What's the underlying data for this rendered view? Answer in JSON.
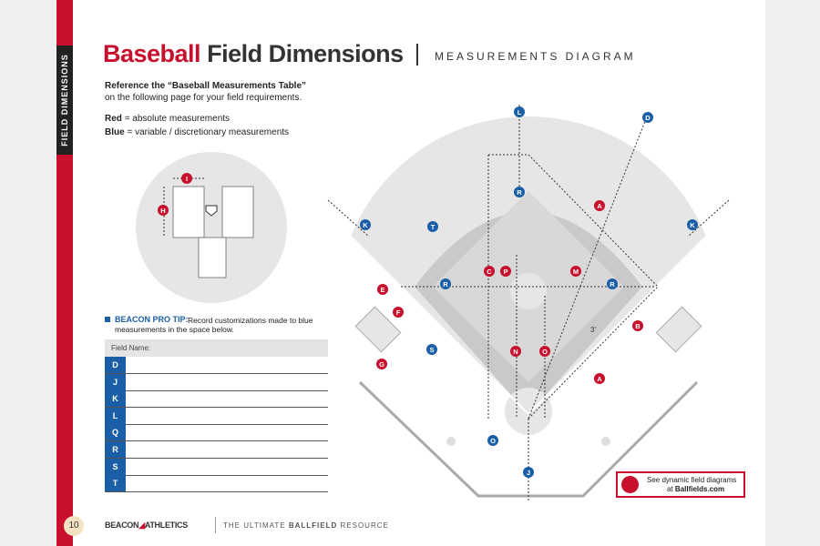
{
  "sidebar": {
    "label": "FIELD DIMENSIONS"
  },
  "header": {
    "title_red": "Baseball",
    "title_dark": "Field Dimensions",
    "subtitle": "MEASUREMENTS DIAGRAM"
  },
  "intro": {
    "line1": "Reference the “Baseball Measurements Table”",
    "line2": "on the following page for your field requirements."
  },
  "legend": [
    {
      "key": "Red",
      "text": "= absolute measurements",
      "color": "#c8102e"
    },
    {
      "key": "Blue",
      "text": "= variable / discretionary measurements",
      "color": "#1a5ea8"
    }
  ],
  "tip": {
    "heading": "BEACON PRO TIP:",
    "text": "Record customizations made to blue measurements in the space below."
  },
  "table": {
    "header": "Field Name:",
    "rows": [
      "D",
      "J",
      "K",
      "L",
      "Q",
      "R",
      "S",
      "T"
    ]
  },
  "diagram": {
    "labels": [
      {
        "letter": "L",
        "color": "#1a5ea8"
      },
      {
        "letter": "D",
        "color": "#1a5ea8"
      },
      {
        "letter": "R",
        "color": "#1a5ea8"
      },
      {
        "letter": "A",
        "color": "#c8102e"
      },
      {
        "letter": "K",
        "color": "#1a5ea8"
      },
      {
        "letter": "T",
        "color": "#1a5ea8"
      },
      {
        "letter": "K",
        "color": "#1a5ea8"
      },
      {
        "letter": "C",
        "color": "#c8102e"
      },
      {
        "letter": "P",
        "color": "#c8102e"
      },
      {
        "letter": "M",
        "color": "#c8102e"
      },
      {
        "letter": "E",
        "color": "#c8102e"
      },
      {
        "letter": "R",
        "color": "#1a5ea8"
      },
      {
        "letter": "R",
        "color": "#1a5ea8"
      },
      {
        "letter": "F",
        "color": "#c8102e"
      },
      {
        "letter": "S",
        "color": "#1a5ea8"
      },
      {
        "letter": "B",
        "color": "#c8102e"
      },
      {
        "letter": "N",
        "color": "#c8102e"
      },
      {
        "letter": "O",
        "color": "#c8102e"
      },
      {
        "letter": "A",
        "color": "#c8102e"
      },
      {
        "letter": "G",
        "color": "#c8102e"
      },
      {
        "letter": "O",
        "color": "#1a5ea8"
      },
      {
        "letter": "J",
        "color": "#1a5ea8"
      },
      {
        "letter": "I",
        "color": "#c8102e"
      },
      {
        "letter": "H",
        "color": "#c8102e"
      }
    ],
    "note": "3'"
  },
  "callout": {
    "line1": "See dynamic field diagrams",
    "line2_prefix": "at",
    "line2_link": "Ballfields.com"
  },
  "footer": {
    "page": "10",
    "logo_left": "BEACON",
    "logo_right": "ATHLETICS",
    "tagline_plain": "THE ULTIMATE",
    "tagline_bold": "BALLFIELD",
    "tagline_end": "RESOURCE"
  }
}
